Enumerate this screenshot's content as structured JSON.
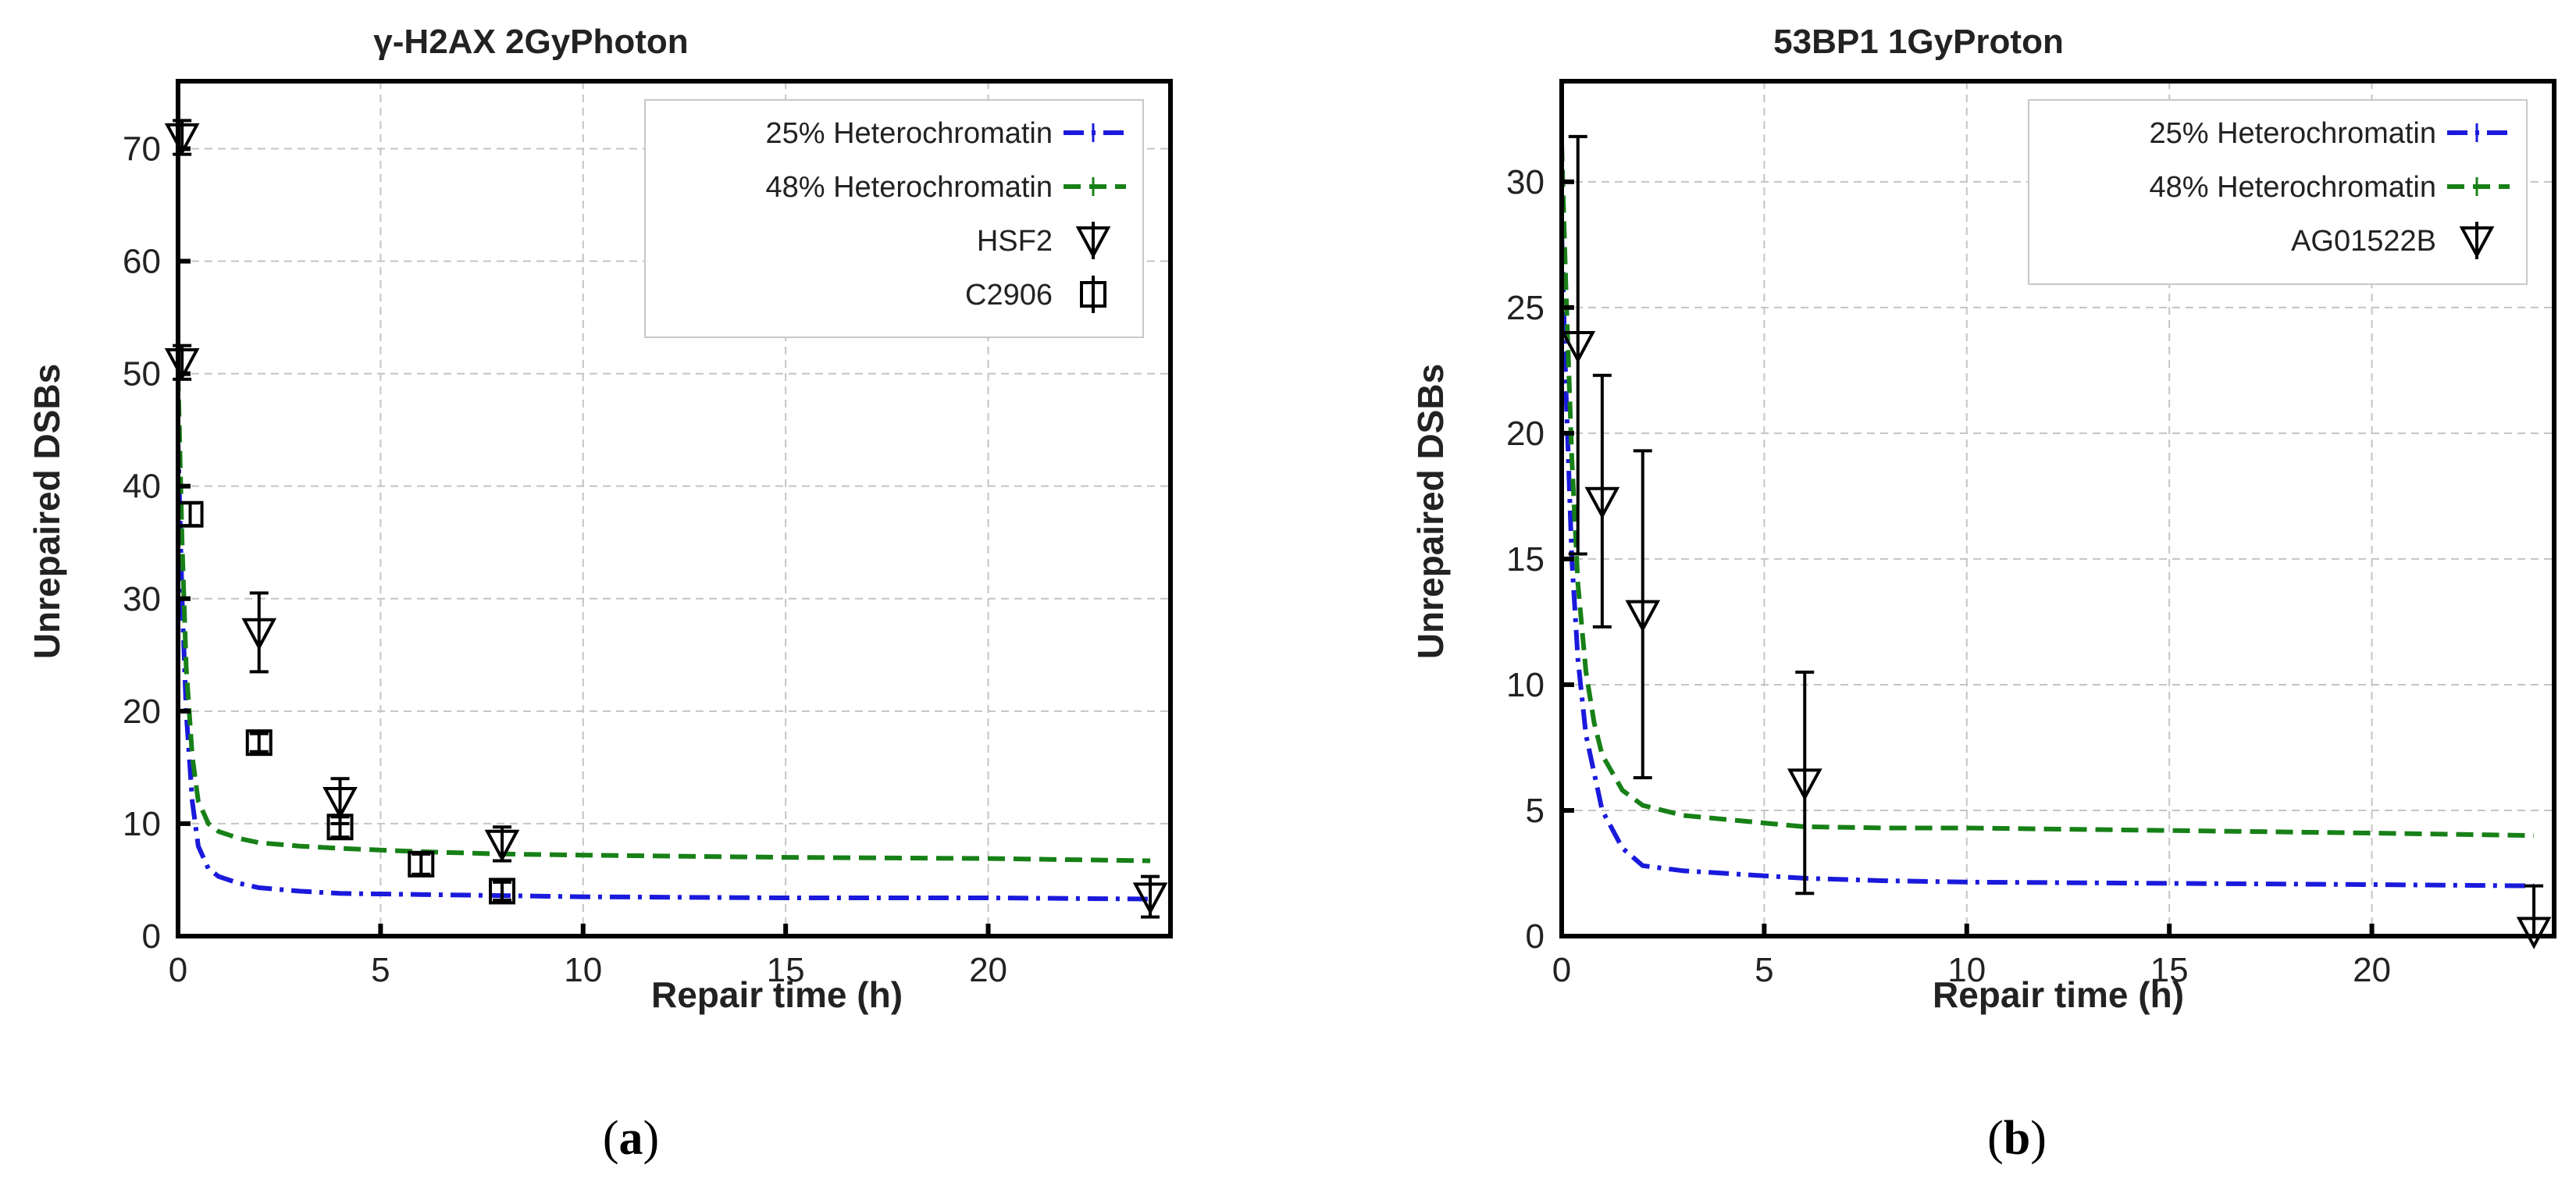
{
  "colors": {
    "blue": "#1a1adc",
    "green": "#178017",
    "black": "#000000"
  },
  "captions": [
    "a",
    "b"
  ],
  "chart_data": [
    {
      "type": "line",
      "title": "γ-H2AX 2GyPhoton",
      "xlabel": "Repair time (h)",
      "ylabel": "Unrepaired DSBs",
      "xlim": [
        0,
        24.5
      ],
      "ylim": [
        0,
        76
      ],
      "xticks": [
        0,
        5,
        10,
        15,
        20
      ],
      "yticks": [
        0,
        10,
        20,
        30,
        40,
        50,
        60,
        70
      ],
      "grid": true,
      "legend_position": "top-right",
      "series": [
        {
          "name": "25% Heterochromatin",
          "style": "blue-dashdot",
          "x": [
            0,
            0.1,
            0.2,
            0.35,
            0.5,
            0.75,
            1,
            1.5,
            2,
            3,
            4,
            6,
            8,
            10,
            15,
            20,
            24
          ],
          "y": [
            44,
            30,
            20,
            12,
            8,
            6,
            5.3,
            4.7,
            4.3,
            4.0,
            3.8,
            3.7,
            3.6,
            3.5,
            3.4,
            3.4,
            3.3
          ]
        },
        {
          "name": "48% Heterochromatin",
          "style": "green-dashed",
          "x": [
            0,
            0.1,
            0.2,
            0.35,
            0.5,
            0.75,
            1,
            1.5,
            2,
            3,
            4,
            6,
            8,
            10,
            15,
            20,
            24
          ],
          "y": [
            50,
            35,
            24,
            16,
            12,
            10,
            9.3,
            8.7,
            8.3,
            8.0,
            7.8,
            7.5,
            7.3,
            7.2,
            7.0,
            6.9,
            6.7
          ]
        },
        {
          "name": "HSF2",
          "marker": "triangle-down",
          "x": [
            0.1,
            0.1,
            2,
            4,
            8,
            24
          ],
          "y": [
            71,
            51,
            27,
            12,
            8.2,
            3.5
          ],
          "err": [
            1.5,
            1.5,
            3.5,
            2.0,
            1.5,
            1.8
          ]
        },
        {
          "name": "C2906",
          "marker": "square",
          "x": [
            0.3,
            2,
            4,
            6,
            8
          ],
          "y": [
            37.5,
            17.2,
            9.7,
            6.4,
            4.0
          ],
          "err": [
            1.0,
            0.8,
            0.9,
            0.9,
            0.8
          ]
        }
      ]
    },
    {
      "type": "line",
      "title": "53BP1 1GyProton",
      "xlabel": "Repair time (h)",
      "ylabel": "Unrepaired DSBs",
      "xlim": [
        0,
        24.5
      ],
      "ylim": [
        0,
        34
      ],
      "xticks": [
        0,
        5,
        10,
        15,
        20
      ],
      "yticks": [
        0,
        5,
        10,
        15,
        20,
        25,
        30
      ],
      "grid": true,
      "legend_position": "top-right",
      "series": [
        {
          "name": "25% Heterochromatin",
          "style": "blue-dashdot",
          "x": [
            0,
            0.1,
            0.25,
            0.4,
            0.6,
            0.8,
            1,
            1.5,
            2,
            3,
            5,
            6,
            8,
            10,
            15,
            20,
            24
          ],
          "y": [
            28,
            22,
            15,
            11,
            8,
            6.5,
            5,
            3.5,
            2.8,
            2.6,
            2.4,
            2.3,
            2.2,
            2.15,
            2.1,
            2.05,
            2.0
          ]
        },
        {
          "name": "48% Heterochromatin",
          "style": "green-dashed",
          "x": [
            0,
            0.1,
            0.25,
            0.4,
            0.6,
            0.8,
            1,
            1.5,
            2,
            3,
            5,
            6,
            8,
            10,
            15,
            20,
            24
          ],
          "y": [
            31.5,
            26,
            19,
            14,
            10.5,
            8.5,
            7.2,
            5.8,
            5.2,
            4.8,
            4.5,
            4.35,
            4.3,
            4.3,
            4.2,
            4.1,
            4.0
          ]
        },
        {
          "name": "AG01522B",
          "marker": "triangle-down",
          "x": [
            0.4,
            1,
            2,
            6,
            24
          ],
          "y": [
            23.5,
            17.3,
            12.8,
            6.1,
            0.2
          ],
          "err": [
            8.3,
            5.0,
            6.5,
            4.4,
            1.8
          ]
        }
      ]
    }
  ]
}
